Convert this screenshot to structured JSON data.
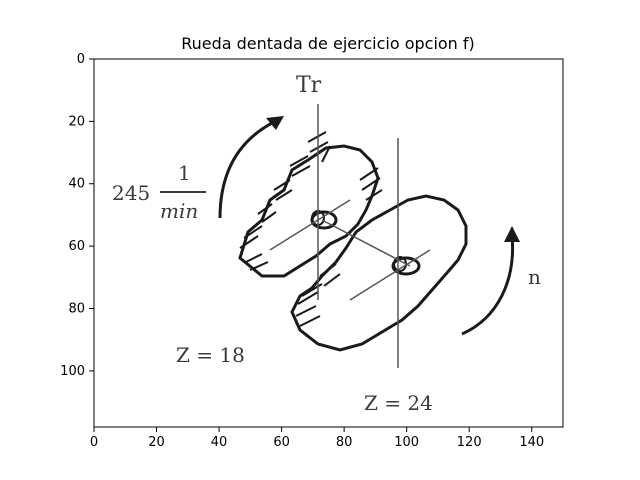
{
  "title": "Rueda dentada de ejercicio opcion f)",
  "axes": {
    "x_ticks": [
      "0",
      "20",
      "40",
      "60",
      "80",
      "100",
      "120",
      "140"
    ],
    "y_ticks": [
      "0",
      "20",
      "40",
      "60",
      "80",
      "100"
    ],
    "xlim": [
      0,
      150
    ],
    "ylim_inverted": [
      118,
      0
    ]
  },
  "diagram": {
    "torque_label": "Tr",
    "speed_value": "245",
    "speed_num": "1",
    "speed_den": "min",
    "speed_out_label": "n",
    "z_small": "Z = 18",
    "z_large": "Z = 24"
  },
  "colors": {
    "ink": "#1a1a1a",
    "gray_ink": "#555555",
    "axis": "#000000"
  }
}
